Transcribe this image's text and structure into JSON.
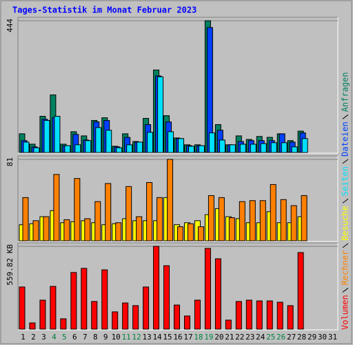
{
  "title": "Tages-Statistik im Monat Februar 2023",
  "highlight_color": "#008040",
  "highlight_categories": [
    "4",
    "5",
    "11",
    "12",
    "18",
    "19",
    "25",
    "26"
  ],
  "chart_data": [
    {
      "type": "bar",
      "categories": [
        "1",
        "2",
        "3",
        "4",
        "5",
        "6",
        "7",
        "8",
        "9",
        "10",
        "11",
        "12",
        "13",
        "14",
        "15",
        "16",
        "17",
        "18",
        "19",
        "20",
        "21",
        "22",
        "23",
        "24",
        "25",
        "26",
        "27",
        "28",
        "29",
        "30",
        "31"
      ],
      "ylim": [
        0,
        444
      ],
      "yticks": [
        444
      ],
      "series": [
        {
          "name": "Anfragen",
          "color": "#008060",
          "values": [
            63,
            28,
            122,
            194,
            28,
            70,
            56,
            108,
            117,
            21,
            63,
            37,
            115,
            278,
            124,
            49,
            26,
            26,
            444,
            94,
            26,
            56,
            44,
            54,
            51,
            63,
            40,
            72,
            null,
            null,
            null
          ]
        },
        {
          "name": "Dateien",
          "color": "#0040ff",
          "values": [
            40,
            19,
            112,
            117,
            23,
            61,
            42,
            103,
            108,
            19,
            51,
            35,
            94,
            258,
            103,
            47,
            23,
            23,
            421,
            75,
            26,
            37,
            40,
            40,
            40,
            63,
            35,
            66,
            null,
            null,
            null
          ]
        },
        {
          "name": "Seiten",
          "color": "#00e0ff",
          "values": [
            35,
            16,
            108,
            122,
            23,
            26,
            40,
            84,
            75,
            16,
            26,
            35,
            68,
            255,
            70,
            47,
            21,
            23,
            66,
            42,
            26,
            28,
            28,
            30,
            33,
            33,
            19,
            47,
            null,
            null,
            null
          ]
        }
      ]
    },
    {
      "type": "bar",
      "categories": [
        "1",
        "2",
        "3",
        "4",
        "5",
        "6",
        "7",
        "8",
        "9",
        "10",
        "11",
        "12",
        "13",
        "14",
        "15",
        "16",
        "17",
        "18",
        "19",
        "20",
        "21",
        "22",
        "23",
        "24",
        "25",
        "26",
        "27",
        "28",
        "29",
        "30",
        "31"
      ],
      "ylim": [
        0,
        81
      ],
      "yticks": [
        81
      ],
      "series": [
        {
          "name": "Besuche",
          "color": "#ffff00",
          "values": [
            16,
            17,
            24,
            30,
            18,
            19,
            20,
            18,
            16,
            17,
            22,
            20,
            20,
            20,
            43,
            16,
            18,
            20,
            26,
            32,
            24,
            22,
            18,
            18,
            29,
            18,
            18,
            24,
            null,
            null,
            null
          ]
        },
        {
          "name": "Rechner",
          "color": "#ff8000",
          "values": [
            43,
            20,
            24,
            66,
            21,
            62,
            22,
            39,
            57,
            18,
            54,
            24,
            58,
            43,
            81,
            14,
            17,
            14,
            45,
            43,
            23,
            39,
            40,
            40,
            56,
            41,
            35,
            45,
            null,
            null,
            null
          ]
        }
      ]
    },
    {
      "type": "bar",
      "categories": [
        "1",
        "2",
        "3",
        "4",
        "5",
        "6",
        "7",
        "8",
        "9",
        "10",
        "11",
        "12",
        "13",
        "14",
        "15",
        "16",
        "17",
        "18",
        "19",
        "20",
        "21",
        "22",
        "23",
        "24",
        "25",
        "26",
        "27",
        "28",
        "29",
        "30",
        "31"
      ],
      "ylim": [
        0,
        559.82
      ],
      "yticks": [
        {
          "value": 559.82,
          "label": "559.82 KB"
        }
      ],
      "series": [
        {
          "name": "Volumen",
          "color": "#ff0000",
          "values": [
            285,
            42,
            196,
            289,
            70,
            383,
            411,
            187,
            401,
            117,
            177,
            159,
            285,
            560,
            429,
            163,
            89,
            196,
            546,
            476,
            61,
            187,
            196,
            191,
            191,
            182,
            159,
            518,
            null,
            null,
            null
          ]
        }
      ]
    }
  ]
}
